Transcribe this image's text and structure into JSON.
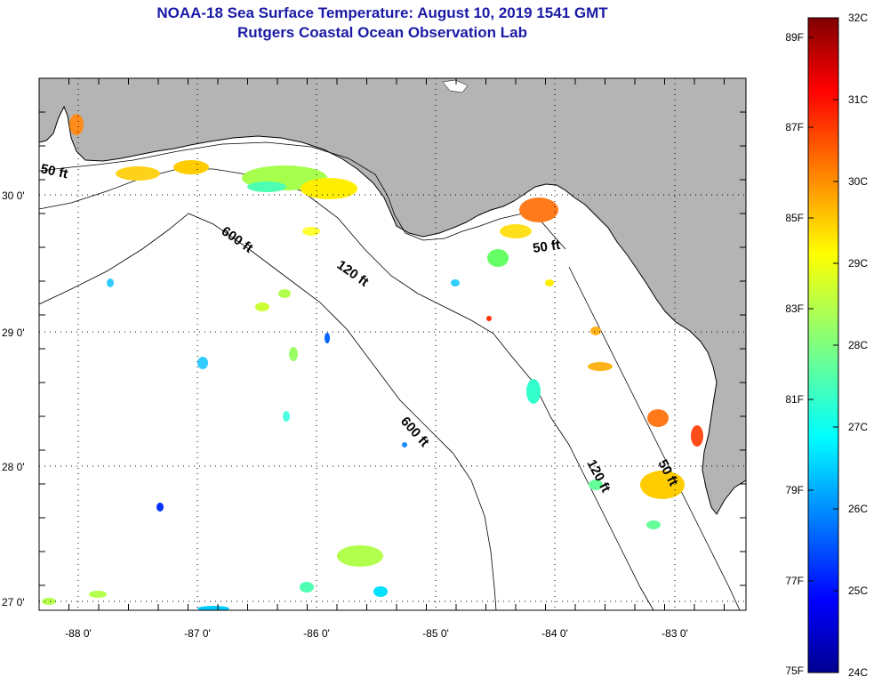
{
  "title": {
    "line1": "NOAA-18 Sea Surface Temperature:  August 10, 2019 1541 GMT",
    "line2": "Rutgers Coastal Ocean Observation Lab"
  },
  "map": {
    "longitude_labels": [
      "-88 0'",
      "-87 0'",
      "-86 0'",
      "-85 0'",
      "-84 0'",
      "-83 0'"
    ],
    "latitude_labels": [
      "30 0'",
      "29 0'",
      "28 0'",
      "27 0'"
    ],
    "depth_contour_labels": [
      "50 ft",
      "600 ft",
      "120 ft",
      "50 ft",
      "600 ft",
      "120 ft",
      "50 ft"
    ],
    "colors": {
      "land": "#b4b4b4",
      "ocean": "#ffffff",
      "title": "#1a1aa6"
    }
  },
  "colorbar": {
    "fahrenheit_labels": [
      "89F",
      "87F",
      "85F",
      "83F",
      "81F",
      "79F",
      "77F",
      "75F"
    ],
    "celsius_labels": [
      "32C",
      "31C",
      "30C",
      "29C",
      "28C",
      "27C",
      "26C",
      "25C",
      "24C"
    ]
  }
}
